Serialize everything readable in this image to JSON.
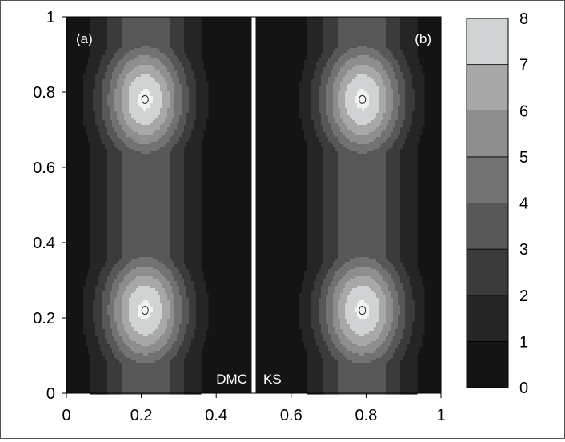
{
  "chart_data": {
    "type": "heatmap",
    "subtype": "filled-contour",
    "x": {
      "ticks": [
        0,
        0.2,
        0.4,
        0.6,
        0.8,
        1
      ],
      "tick_labels": [
        "0",
        "0.2",
        "0.4",
        "0.6",
        "0.8",
        "1"
      ],
      "range": [
        0,
        1
      ]
    },
    "y": {
      "ticks": [
        0,
        0.2,
        0.4,
        0.6,
        0.8,
        1
      ],
      "tick_labels": [
        "0",
        "0.2",
        "0.4",
        "0.6",
        "0.8",
        "1"
      ],
      "range": [
        0,
        1
      ]
    },
    "panels": [
      {
        "label": "(a)",
        "method": "DMC",
        "x_range": [
          0,
          0.5
        ],
        "maxima": [
          {
            "x": 0.21,
            "y": 0.78
          },
          {
            "x": 0.21,
            "y": 0.22
          }
        ]
      },
      {
        "label": "(b)",
        "method": "KS",
        "x_range": [
          0.5,
          1
        ],
        "maxima": [
          {
            "x": 0.79,
            "y": 0.78
          },
          {
            "x": 0.79,
            "y": 0.22
          }
        ]
      }
    ],
    "divider_x": 0.5,
    "colorbar": {
      "range": [
        0,
        8
      ],
      "levels": [
        0,
        1,
        2,
        3,
        4,
        5,
        6,
        7,
        8
      ],
      "tick_labels": [
        "0",
        "1",
        "2",
        "3",
        "4",
        "5",
        "6",
        "7",
        "8"
      ],
      "colors": [
        "#141414",
        "#252525",
        "#3b3b3b",
        "#575757",
        "#727272",
        "#8e8e8e",
        "#a8a8a8",
        "#cfd3d3",
        "#f1f2f2"
      ]
    },
    "grid": false,
    "legend": "right"
  }
}
